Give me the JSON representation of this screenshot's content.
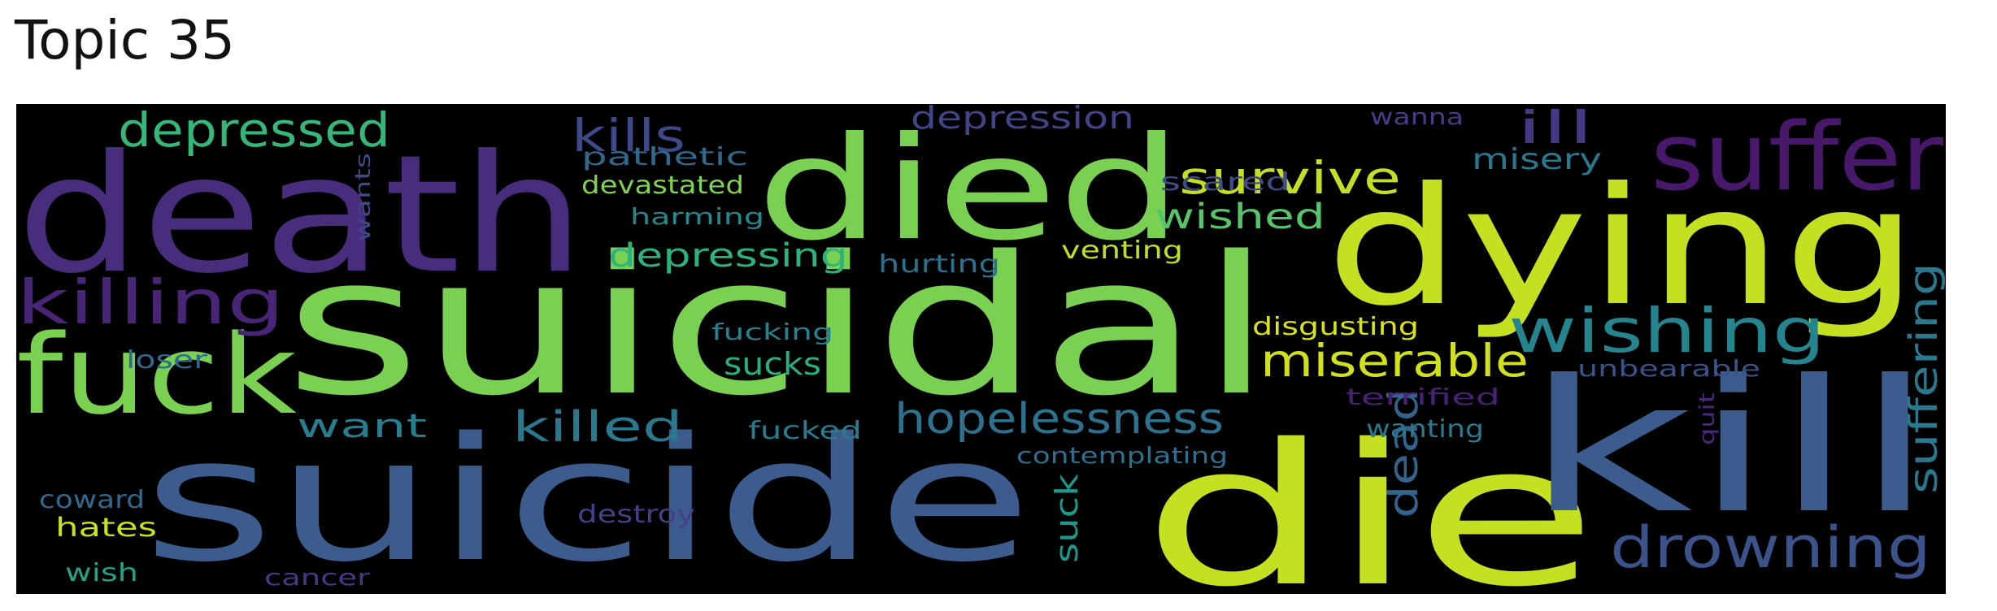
{
  "title": "Topic 35",
  "words": [
    {
      "text": "suicidal",
      "color": "#7ad151"
    },
    {
      "text": "suicide",
      "color": "#3b5c8d"
    },
    {
      "text": "death",
      "color": "#472d7b"
    },
    {
      "text": "died",
      "color": "#7ad151"
    },
    {
      "text": "dying",
      "color": "#c5e021"
    },
    {
      "text": "die",
      "color": "#c5e021"
    },
    {
      "text": "kill",
      "color": "#3b5c8d"
    },
    {
      "text": "suffer",
      "color": "#48186a"
    },
    {
      "text": "fuck",
      "color": "#7ad151"
    },
    {
      "text": "killing",
      "color": "#482576"
    },
    {
      "text": "depressed",
      "color": "#35b779"
    },
    {
      "text": "kills",
      "color": "#3e4989"
    },
    {
      "text": "depression",
      "color": "#414487"
    },
    {
      "text": "survive",
      "color": "#c2df23"
    },
    {
      "text": "ill",
      "color": "#443983"
    },
    {
      "text": "misery",
      "color": "#2a788e"
    },
    {
      "text": "wishing",
      "color": "#25858e"
    },
    {
      "text": "suffering",
      "color": "#2a788e"
    },
    {
      "text": "drowning",
      "color": "#3b528b"
    },
    {
      "text": "miserable",
      "color": "#d0e11c"
    },
    {
      "text": "hopelessness",
      "color": "#2c728e"
    },
    {
      "text": "killed",
      "color": "#2a788e"
    },
    {
      "text": "depressing",
      "color": "#2db27d"
    },
    {
      "text": "wished",
      "color": "#54c568"
    },
    {
      "text": "dead",
      "color": "#33638d"
    },
    {
      "text": "sucks",
      "color": "#2ab07f"
    },
    {
      "text": "want",
      "color": "#287d8e"
    },
    {
      "text": "pathetic",
      "color": "#31688e"
    },
    {
      "text": "devastated",
      "color": "#7fd34e"
    },
    {
      "text": "harming",
      "color": "#23898e"
    },
    {
      "text": "scared",
      "color": "#3e4c8a"
    },
    {
      "text": "wanna",
      "color": "#433e85"
    },
    {
      "text": "hurting",
      "color": "#2d708e"
    },
    {
      "text": "venting",
      "color": "#bddf26"
    },
    {
      "text": "disgusting",
      "color": "#d8e219"
    },
    {
      "text": "fucking",
      "color": "#26818e"
    },
    {
      "text": "unbearable",
      "color": "#3b528b"
    },
    {
      "text": "terrified",
      "color": "#482173"
    },
    {
      "text": "wanting",
      "color": "#2a788e"
    },
    {
      "text": "quit",
      "color": "#482979"
    },
    {
      "text": "contemplating",
      "color": "#2d708e"
    },
    {
      "text": "fucked",
      "color": "#287c8e"
    },
    {
      "text": "loser",
      "color": "#30698e"
    },
    {
      "text": "wants",
      "color": "#3f4889"
    },
    {
      "text": "coward",
      "color": "#31688e"
    },
    {
      "text": "hates",
      "color": "#c8e020"
    },
    {
      "text": "wish",
      "color": "#20a386"
    },
    {
      "text": "destroy",
      "color": "#424086"
    },
    {
      "text": "cancer",
      "color": "#443a83"
    },
    {
      "text": "suck",
      "color": "#1f978b"
    }
  ]
}
